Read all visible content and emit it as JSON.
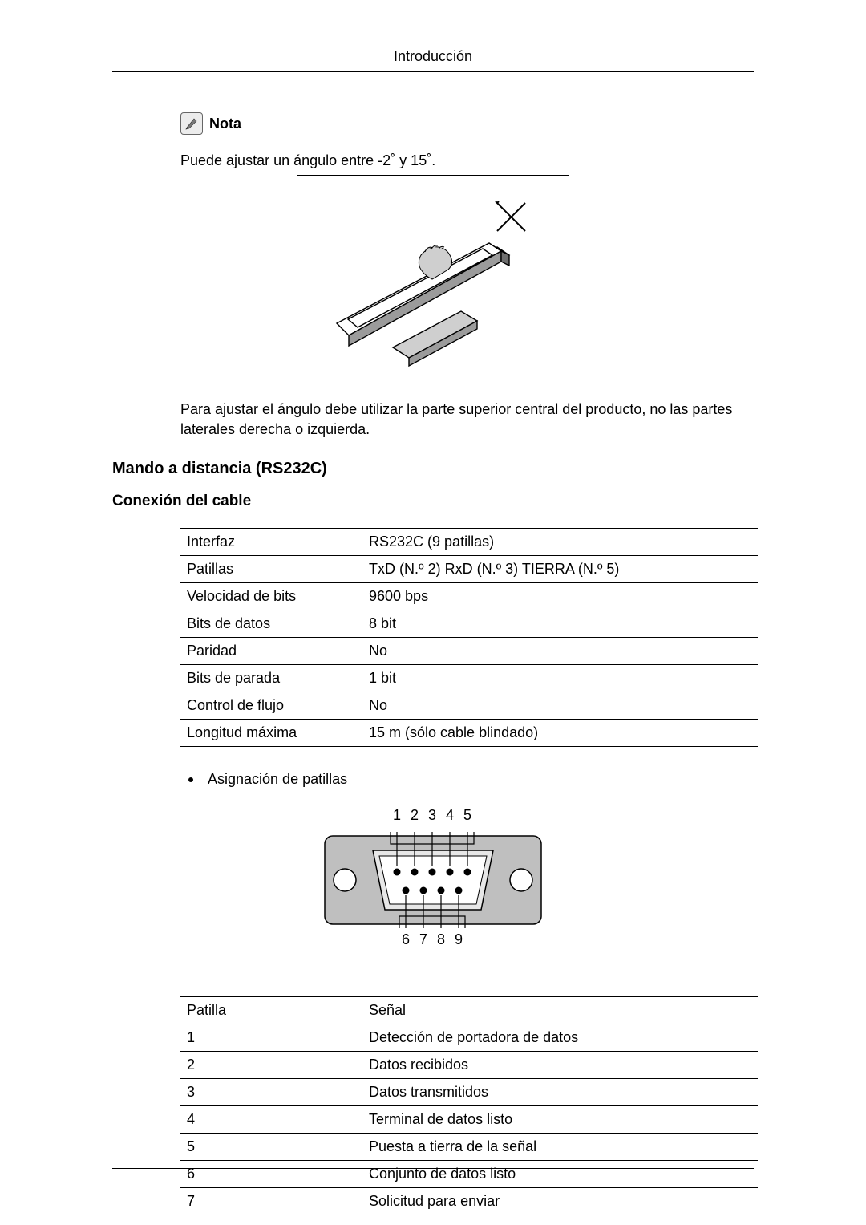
{
  "header": {
    "title": "Introducción"
  },
  "note": {
    "label": "Nota",
    "text": "Puede ajustar un ángulo entre -2˚ y 15˚."
  },
  "angle_paragraph": "Para ajustar el ángulo debe utilizar la parte superior central del producto, no las partes laterales derecha o izquierda.",
  "section": {
    "title": "Mando a distancia (RS232C)",
    "subtitle": "Conexión del cable"
  },
  "spec_table": {
    "rows": [
      [
        "Interfaz",
        "RS232C (9 patillas)"
      ],
      [
        "Patillas",
        "TxD (N.º 2) RxD (N.º 3) TIERRA (N.º 5)"
      ],
      [
        "Velocidad de bits",
        "9600 bps"
      ],
      [
        "Bits de datos",
        "8 bit"
      ],
      [
        "Paridad",
        "No"
      ],
      [
        "Bits de parada",
        "1 bit"
      ],
      [
        "Control de flujo",
        "No"
      ],
      [
        "Longitud máxima",
        "15 m (sólo cable blindado)"
      ]
    ]
  },
  "bullet": {
    "text": "Asignación de patillas"
  },
  "pin_diagram": {
    "top_labels": [
      "1",
      "2",
      "3",
      "4",
      "5"
    ],
    "bottom_labels": [
      "6",
      "7",
      "8",
      "9"
    ],
    "colors": {
      "outer": "#bfbfbf",
      "inner": "#e7e7e7",
      "line": "#000000",
      "bg": "#ffffff"
    }
  },
  "pin_table": {
    "header": [
      "Patilla",
      "Señal"
    ],
    "rows": [
      [
        "1",
        "Detección de portadora de datos"
      ],
      [
        "2",
        "Datos recibidos"
      ],
      [
        "3",
        "Datos transmitidos"
      ],
      [
        "4",
        "Terminal de datos listo"
      ],
      [
        "5",
        "Puesta a tierra de la señal"
      ],
      [
        "6",
        "Conjunto de datos listo"
      ],
      [
        "7",
        "Solicitud para enviar"
      ]
    ]
  },
  "monitor_figure": {
    "colors": {
      "line": "#000000",
      "shade_dark": "#6f6f6f",
      "shade_mid": "#9b9b9b",
      "shade_light": "#cfcfcf",
      "screen": "#ffffff"
    }
  }
}
